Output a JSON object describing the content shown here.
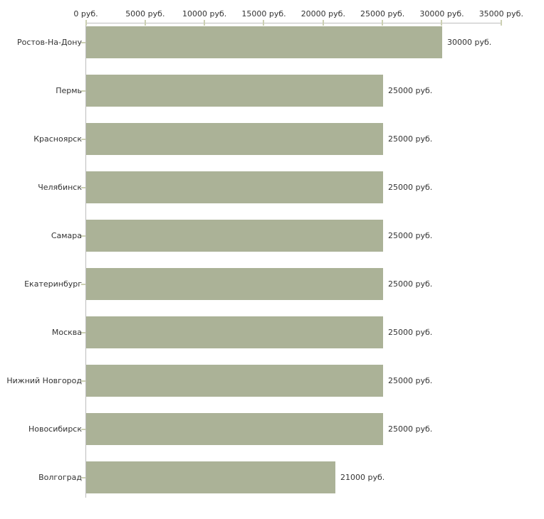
{
  "chart_data": {
    "type": "bar",
    "orientation": "horizontal",
    "title": "",
    "legend": "none",
    "grid": false,
    "unit": "руб.",
    "xlim": [
      0,
      35000
    ],
    "x_ticks": [
      {
        "value": 0,
        "label": "0 руб."
      },
      {
        "value": 5000,
        "label": "5000 руб."
      },
      {
        "value": 10000,
        "label": "10000 руб."
      },
      {
        "value": 15000,
        "label": "15000 руб."
      },
      {
        "value": 20000,
        "label": "20000 руб."
      },
      {
        "value": 25000,
        "label": "25000 руб."
      },
      {
        "value": 30000,
        "label": "30000 руб."
      },
      {
        "value": 35000,
        "label": "35000 руб."
      }
    ],
    "categories": [
      "Ростов-На-Дону",
      "Пермь",
      "Красноярск",
      "Челябинск",
      "Самара",
      "Екатеринбург",
      "Москва",
      "Нижний Новгород",
      "Новосибирск",
      "Волгоград"
    ],
    "values": [
      30000,
      25000,
      25000,
      25000,
      25000,
      25000,
      25000,
      25000,
      25000,
      21000
    ],
    "value_labels": [
      "30000 руб.",
      "25000 руб.",
      "25000 руб.",
      "25000 руб.",
      "25000 руб.",
      "25000 руб.",
      "25000 руб.",
      "25000 руб.",
      "25000 руб.",
      "21000 руб."
    ],
    "colors": {
      "bar": "#abb297",
      "axis": "#bdbdbd",
      "tick": "#ccd0b3",
      "text": "#333333",
      "background": "#ffffff"
    }
  }
}
